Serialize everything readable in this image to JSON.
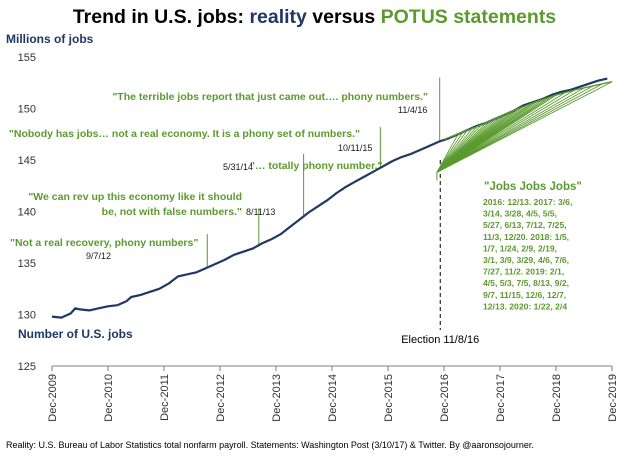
{
  "title": {
    "prefix": "Trend in U.S. jobs: ",
    "reality": "reality",
    "middle": " versus ",
    "potus": "POTUS statements",
    "reality_color": "#1f3864",
    "potus_color": "#5b9a2e"
  },
  "source": "Reality: U.S. Bureau of Labor Statistics total nonfarm payroll. Statements: Washington Post (3/10/17) & Twitter. By @aaronsojourner.",
  "chart_data": {
    "type": "line",
    "title": "Trend in U.S. jobs: reality versus POTUS statements",
    "ylabel": "Millions of jobs",
    "series_label": "Number of U.S. jobs",
    "ylim": [
      125,
      155
    ],
    "yticks": [
      125,
      130,
      135,
      140,
      145,
      150,
      155
    ],
    "xlim": [
      2009.917,
      2019.917
    ],
    "xticks": [
      {
        "x": 2009.917,
        "label": "Dec-2009"
      },
      {
        "x": 2010.917,
        "label": "Dec-2010"
      },
      {
        "x": 2011.917,
        "label": "Dec-2011"
      },
      {
        "x": 2012.917,
        "label": "Dec-2012"
      },
      {
        "x": 2013.917,
        "label": "Dec-2013"
      },
      {
        "x": 2014.917,
        "label": "Dec-2014"
      },
      {
        "x": 2015.917,
        "label": "Dec-2015"
      },
      {
        "x": 2016.917,
        "label": "Dec-2016"
      },
      {
        "x": 2017.917,
        "label": "Dec-2017"
      },
      {
        "x": 2018.917,
        "label": "Dec-2018"
      },
      {
        "x": 2019.917,
        "label": "Dec-2019"
      }
    ],
    "series": [
      {
        "name": "Number of U.S. jobs",
        "color": "#1f3864",
        "points": [
          [
            2009.917,
            129.8
          ],
          [
            2010.083,
            129.7
          ],
          [
            2010.25,
            130.1
          ],
          [
            2010.333,
            130.6
          ],
          [
            2010.417,
            130.5
          ],
          [
            2010.583,
            130.4
          ],
          [
            2010.75,
            130.6
          ],
          [
            2010.917,
            130.8
          ],
          [
            2011.083,
            130.9
          ],
          [
            2011.25,
            131.3
          ],
          [
            2011.333,
            131.7
          ],
          [
            2011.5,
            131.9
          ],
          [
            2011.667,
            132.2
          ],
          [
            2011.833,
            132.5
          ],
          [
            2012.0,
            133.0
          ],
          [
            2012.167,
            133.7
          ],
          [
            2012.333,
            133.9
          ],
          [
            2012.5,
            134.1
          ],
          [
            2012.667,
            134.5
          ],
          [
            2012.833,
            134.9
          ],
          [
            2013.0,
            135.3
          ],
          [
            2013.167,
            135.8
          ],
          [
            2013.333,
            136.1
          ],
          [
            2013.5,
            136.4
          ],
          [
            2013.667,
            136.9
          ],
          [
            2013.833,
            137.3
          ],
          [
            2014.0,
            137.8
          ],
          [
            2014.167,
            138.5
          ],
          [
            2014.333,
            139.2
          ],
          [
            2014.5,
            139.9
          ],
          [
            2014.667,
            140.5
          ],
          [
            2014.833,
            141.1
          ],
          [
            2015.0,
            141.8
          ],
          [
            2015.167,
            142.4
          ],
          [
            2015.333,
            142.9
          ],
          [
            2015.5,
            143.4
          ],
          [
            2015.667,
            143.9
          ],
          [
            2015.833,
            144.4
          ],
          [
            2016.0,
            144.9
          ],
          [
            2016.167,
            145.3
          ],
          [
            2016.333,
            145.6
          ],
          [
            2016.5,
            146.0
          ],
          [
            2016.667,
            146.4
          ],
          [
            2016.833,
            146.8
          ],
          [
            2017.0,
            147.1
          ],
          [
            2017.167,
            147.5
          ],
          [
            2017.333,
            147.9
          ],
          [
            2017.5,
            148.3
          ],
          [
            2017.667,
            148.6
          ],
          [
            2017.833,
            149.0
          ],
          [
            2018.0,
            149.4
          ],
          [
            2018.167,
            149.8
          ],
          [
            2018.333,
            150.3
          ],
          [
            2018.5,
            150.6
          ],
          [
            2018.667,
            150.9
          ],
          [
            2018.833,
            151.3
          ],
          [
            2019.0,
            151.6
          ],
          [
            2019.167,
            151.8
          ],
          [
            2019.333,
            152.1
          ],
          [
            2019.5,
            152.4
          ],
          [
            2019.667,
            152.7
          ],
          [
            2019.833,
            152.9
          ]
        ]
      },
      {
        "name": "POTUS statements trend",
        "color": "#5b9a2e",
        "points": [
          [
            2016.917,
            147.0
          ],
          [
            2017.25,
            147.7
          ],
          [
            2017.583,
            148.4
          ],
          [
            2017.917,
            149.2
          ],
          [
            2018.25,
            150.0
          ],
          [
            2018.583,
            150.7
          ],
          [
            2018.917,
            151.3
          ],
          [
            2019.25,
            151.8
          ],
          [
            2019.583,
            152.2
          ],
          [
            2019.917,
            152.6
          ]
        ]
      }
    ],
    "jobs_jobs_jobs_hub": [
      2016.79,
      143.8
    ],
    "fan_targets": [
      2017.17,
      2017.25,
      2017.33,
      2017.42,
      2017.5,
      2017.58,
      2017.67,
      2017.75,
      2017.83,
      2017.92,
      2018.0,
      2018.08,
      2018.17,
      2018.25,
      2018.33,
      2018.42,
      2018.5,
      2018.58,
      2018.67,
      2018.75,
      2018.83,
      2018.92,
      2019.08,
      2019.25,
      2019.42,
      2019.58,
      2019.75,
      2019.92
    ],
    "statements": [
      {
        "text_lines": [
          "\"Not a real recovery, phony numbers\""
        ],
        "date": "9/7/12",
        "x": 2012.69,
        "y_top": 137.8
      },
      {
        "text_lines": [
          "\"We can rev up this economy like it should",
          "be, not with false numbers.\""
        ],
        "date": "8/11/13",
        "x": 2013.61,
        "y_top": 140.3
      },
      {
        "text_lines": [
          "\"… totally phony number.\""
        ],
        "date": "5/31/14",
        "x": 2014.41,
        "y_top": 145.6
      },
      {
        "text_lines": [
          "\"Nobody has jobs…  not a real economy. It is a phony set of numbers.\""
        ],
        "date": "10/11/15",
        "x": 2015.78,
        "y_top": 148.2
      },
      {
        "text_lines": [
          "\"The terrible jobs report that just came out…. phony numbers.\""
        ],
        "date": "11/4/16",
        "x": 2016.84,
        "y_top": 153.0
      }
    ],
    "election": {
      "label": "Election 11/8/16",
      "x": 2016.85
    },
    "jobs_jobs_jobs": {
      "title": "\"Jobs Jobs Jobs\"",
      "lines": [
        "2016: 12/13. 2017: 3/6,",
        "3/14, 3/28, 4/5, 5/5,",
        "5/27, 6/13, 7/12, 7/25,",
        "11/3, 12/20. 2018: 1/5,",
        "1/7, 1/24, 2/9, 2/19,",
        "3/1, 3/9, 3/29, 4/6, 7/6,",
        "7/27, 11/2. 2019: 2/1,",
        "4/5, 5/3, 7/5, 8/13, 9/2,",
        "9/7, 11/15, 12/6, 12/7,",
        "12/13. 2020: 1/22, 2/4"
      ]
    }
  }
}
